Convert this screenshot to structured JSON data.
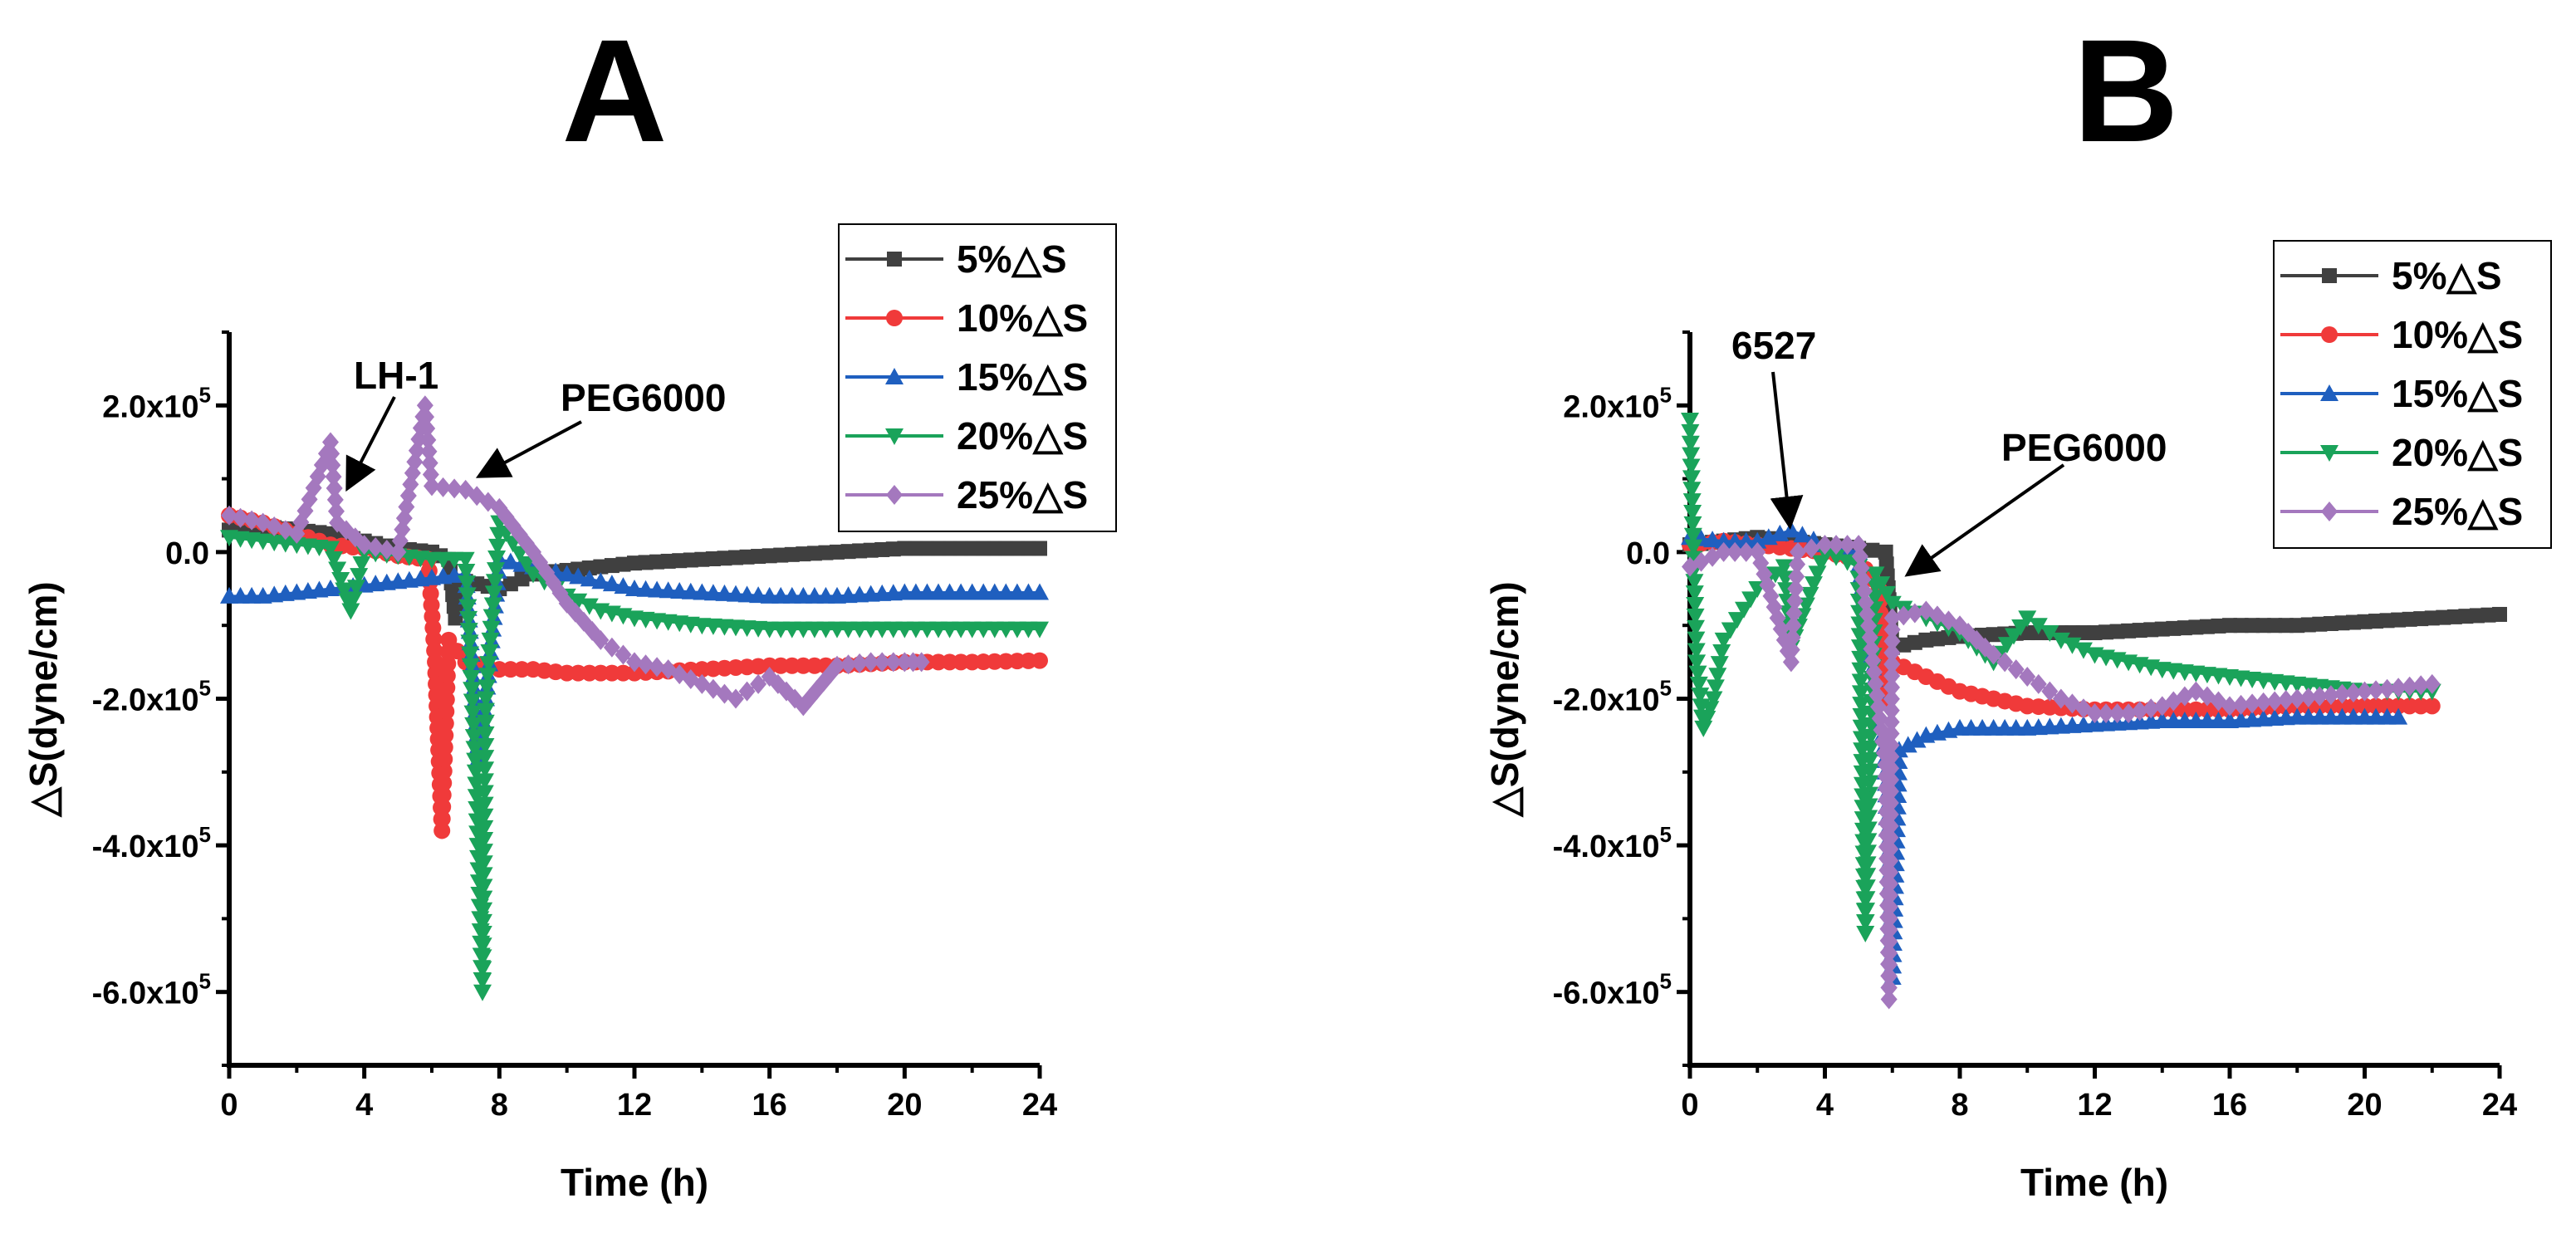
{
  "chart_data": [
    {
      "type": "scatter",
      "panel": "A",
      "xlabel": "Time (h)",
      "ylabel": "△S(dyne/cm)",
      "xlim": [
        0,
        24
      ],
      "ylim": [
        -700000,
        300000
      ],
      "xticks": [
        0,
        4,
        8,
        12,
        16,
        20,
        24
      ],
      "xtick_labels": [
        "0",
        "4",
        "8",
        "12",
        "16",
        "20",
        "24"
      ],
      "yticks": [
        200000,
        0,
        -200000,
        -400000,
        -600000
      ],
      "ytick_labels": [
        [
          "2.0x10",
          "5"
        ],
        [
          "0.0",
          ""
        ],
        [
          "-2.0x10",
          "5"
        ],
        [
          "-4.0x10",
          "5"
        ],
        [
          "-6.0x10",
          "5"
        ]
      ],
      "legend": [
        "5%△S",
        "10%△S",
        "15%△S",
        "20%△S",
        "25%△S"
      ],
      "annotations": [
        {
          "text": "LH-1",
          "x": 3.5,
          "y": 30000
        },
        {
          "text": "PEG6000",
          "x": 7.6,
          "y": 100000
        }
      ],
      "series": [
        {
          "name": "5%△S",
          "color": "#404040",
          "marker": "square",
          "points": [
            [
              0,
              30000
            ],
            [
              1,
              35000
            ],
            [
              2,
              30000
            ],
            [
              3,
              25000
            ],
            [
              4,
              15000
            ],
            [
              5,
              5000
            ],
            [
              6,
              0
            ],
            [
              6.5,
              -10000
            ],
            [
              6.7,
              -90000
            ],
            [
              7,
              -40000
            ],
            [
              8,
              -50000
            ],
            [
              9,
              -30000
            ],
            [
              10,
              -25000
            ],
            [
              11,
              -20000
            ],
            [
              12,
              -15000
            ],
            [
              14,
              -10000
            ],
            [
              16,
              -5000
            ],
            [
              18,
              0
            ],
            [
              20,
              5000
            ],
            [
              22,
              5000
            ],
            [
              24,
              5000
            ]
          ]
        },
        {
          "name": "10%△S",
          "color": "#f03a3a",
          "marker": "circle",
          "points": [
            [
              0,
              50000
            ],
            [
              1,
              40000
            ],
            [
              2,
              25000
            ],
            [
              3,
              10000
            ],
            [
              4,
              5000
            ],
            [
              5,
              -5000
            ],
            [
              5.9,
              -10000
            ],
            [
              6.1,
              -150000
            ],
            [
              6.2,
              -270000
            ],
            [
              6.3,
              -380000
            ],
            [
              6.5,
              -120000
            ],
            [
              7,
              -150000
            ],
            [
              8,
              -160000
            ],
            [
              9,
              -160000
            ],
            [
              10,
              -165000
            ],
            [
              12,
              -165000
            ],
            [
              14,
              -160000
            ],
            [
              16,
              -155000
            ],
            [
              18,
              -155000
            ],
            [
              20,
              -150000
            ],
            [
              22,
              -150000
            ],
            [
              24,
              -148000
            ]
          ]
        },
        {
          "name": "15%△S",
          "color": "#1f5fbf",
          "marker": "triangle-up",
          "points": [
            [
              0,
              -60000
            ],
            [
              1,
              -60000
            ],
            [
              2,
              -55000
            ],
            [
              3,
              -50000
            ],
            [
              4,
              -45000
            ],
            [
              5,
              -40000
            ],
            [
              6,
              -35000
            ],
            [
              7,
              -30000
            ],
            [
              7.4,
              -280000
            ],
            [
              7.6,
              -200000
            ],
            [
              8,
              -10000
            ],
            [
              9,
              -20000
            ],
            [
              10,
              -30000
            ],
            [
              11,
              -40000
            ],
            [
              12,
              -50000
            ],
            [
              14,
              -55000
            ],
            [
              16,
              -60000
            ],
            [
              18,
              -60000
            ],
            [
              20,
              -55000
            ],
            [
              22,
              -55000
            ],
            [
              24,
              -55000
            ]
          ]
        },
        {
          "name": "20%△S",
          "color": "#1aa35a",
          "marker": "triangle-down",
          "points": [
            [
              0,
              20000
            ],
            [
              1,
              15000
            ],
            [
              2,
              10000
            ],
            [
              3,
              5000
            ],
            [
              3.6,
              -80000
            ],
            [
              4,
              0
            ],
            [
              5,
              -5000
            ],
            [
              6,
              -10000
            ],
            [
              7,
              -10000
            ],
            [
              7.3,
              -300000
            ],
            [
              7.4,
              -450000
            ],
            [
              7.5,
              -600000
            ],
            [
              7.6,
              -200000
            ],
            [
              8,
              40000
            ],
            [
              9,
              -30000
            ],
            [
              10,
              -60000
            ],
            [
              11,
              -80000
            ],
            [
              12,
              -90000
            ],
            [
              14,
              -100000
            ],
            [
              16,
              -105000
            ],
            [
              18,
              -105000
            ],
            [
              20,
              -105000
            ],
            [
              22,
              -105000
            ],
            [
              24,
              -105000
            ]
          ]
        },
        {
          "name": "25%△S",
          "color": "#a478be",
          "marker": "diamond",
          "points": [
            [
              0,
              50000
            ],
            [
              1,
              40000
            ],
            [
              2,
              25000
            ],
            [
              3,
              150000
            ],
            [
              3.2,
              40000
            ],
            [
              4,
              10000
            ],
            [
              5,
              0
            ],
            [
              5.8,
              200000
            ],
            [
              6,
              90000
            ],
            [
              7,
              85000
            ],
            [
              8,
              60000
            ],
            [
              9,
              0
            ],
            [
              10,
              -70000
            ],
            [
              11,
              -120000
            ],
            [
              12,
              -150000
            ],
            [
              13,
              -160000
            ],
            [
              14,
              -180000
            ],
            [
              15,
              -200000
            ],
            [
              16,
              -170000
            ],
            [
              17,
              -210000
            ],
            [
              18,
              -155000
            ],
            [
              19,
              -150000
            ],
            [
              20,
              -150000
            ],
            [
              20.5,
              -150000
            ]
          ]
        }
      ]
    },
    {
      "type": "scatter",
      "panel": "B",
      "xlabel": "Time (h)",
      "ylabel": "△S(dyne/cm)",
      "xlim": [
        0,
        24
      ],
      "ylim": [
        -700000,
        300000
      ],
      "xticks": [
        0,
        4,
        8,
        12,
        16,
        20,
        24
      ],
      "xtick_labels": [
        "0",
        "4",
        "8",
        "12",
        "16",
        "20",
        "24"
      ],
      "yticks": [
        200000,
        0,
        -200000,
        -400000,
        -600000
      ],
      "ytick_labels": [
        [
          "2.0x10",
          "5"
        ],
        [
          "0.0",
          ""
        ],
        [
          "-2.0x10",
          "5"
        ],
        [
          "-4.0x10",
          "5"
        ],
        [
          "-6.0x10",
          "5"
        ]
      ],
      "legend": [
        "5%△S",
        "10%△S",
        "15%△S",
        "20%△S",
        "25%△S"
      ],
      "annotations": [
        {
          "text": "6527",
          "x": 2.8,
          "y": 30000
        },
        {
          "text": "PEG6000",
          "x": 6.4,
          "y": -30000
        }
      ],
      "series": [
        {
          "name": "5%△S",
          "color": "#404040",
          "marker": "square",
          "points": [
            [
              0,
              10000
            ],
            [
              1,
              15000
            ],
            [
              2,
              20000
            ],
            [
              3,
              15000
            ],
            [
              4,
              10000
            ],
            [
              5,
              5000
            ],
            [
              5.8,
              0
            ],
            [
              6,
              -130000
            ],
            [
              7,
              -120000
            ],
            [
              8,
              -115000
            ],
            [
              10,
              -110000
            ],
            [
              12,
              -110000
            ],
            [
              14,
              -105000
            ],
            [
              16,
              -100000
            ],
            [
              18,
              -100000
            ],
            [
              20,
              -95000
            ],
            [
              22,
              -90000
            ],
            [
              24,
              -85000
            ]
          ]
        },
        {
          "name": "10%△S",
          "color": "#f03a3a",
          "marker": "circle",
          "points": [
            [
              0,
              10000
            ],
            [
              1,
              15000
            ],
            [
              2,
              10000
            ],
            [
              3,
              5000
            ],
            [
              4,
              0
            ],
            [
              5,
              -10000
            ],
            [
              5.6,
              -50000
            ],
            [
              5.8,
              -200000
            ],
            [
              6,
              -150000
            ],
            [
              7,
              -170000
            ],
            [
              8,
              -190000
            ],
            [
              10,
              -210000
            ],
            [
              12,
              -215000
            ],
            [
              14,
              -215000
            ],
            [
              16,
              -215000
            ],
            [
              18,
              -210000
            ],
            [
              20,
              -210000
            ],
            [
              22,
              -210000
            ]
          ]
        },
        {
          "name": "15%△S",
          "color": "#1f5fbf",
          "marker": "triangle-up",
          "points": [
            [
              0,
              20000
            ],
            [
              1,
              15000
            ],
            [
              2,
              15000
            ],
            [
              3,
              30000
            ],
            [
              4,
              10000
            ],
            [
              5,
              0
            ],
            [
              5.8,
              -300000
            ],
            [
              6,
              -580000
            ],
            [
              6.2,
              -270000
            ],
            [
              7,
              -250000
            ],
            [
              8,
              -240000
            ],
            [
              10,
              -240000
            ],
            [
              12,
              -235000
            ],
            [
              14,
              -230000
            ],
            [
              16,
              -230000
            ],
            [
              18,
              -225000
            ],
            [
              20,
              -225000
            ],
            [
              21,
              -225000
            ]
          ]
        },
        {
          "name": "20%△S",
          "color": "#1aa35a",
          "marker": "triangle-down",
          "points": [
            [
              0,
              180000
            ],
            [
              0.2,
              -150000
            ],
            [
              0.4,
              -240000
            ],
            [
              0.7,
              -200000
            ],
            [
              1,
              -120000
            ],
            [
              2,
              -50000
            ],
            [
              2.8,
              -20000
            ],
            [
              3,
              -130000
            ],
            [
              4,
              0
            ],
            [
              5,
              -20000
            ],
            [
              5.2,
              -520000
            ],
            [
              5.5,
              -30000
            ],
            [
              6,
              -70000
            ],
            [
              7,
              -90000
            ],
            [
              8,
              -110000
            ],
            [
              9,
              -150000
            ],
            [
              10,
              -90000
            ],
            [
              11,
              -120000
            ],
            [
              12,
              -140000
            ],
            [
              14,
              -160000
            ],
            [
              16,
              -170000
            ],
            [
              18,
              -180000
            ],
            [
              20,
              -190000
            ],
            [
              22,
              -190000
            ]
          ]
        },
        {
          "name": "25%△S",
          "color": "#a478be",
          "marker": "diamond",
          "points": [
            [
              0,
              -20000
            ],
            [
              1,
              0
            ],
            [
              2,
              0
            ],
            [
              3,
              -150000
            ],
            [
              3.2,
              0
            ],
            [
              4,
              10000
            ],
            [
              5,
              10000
            ],
            [
              5.8,
              -290000
            ],
            [
              5.9,
              -610000
            ],
            [
              6,
              -90000
            ],
            [
              7,
              -80000
            ],
            [
              8,
              -100000
            ],
            [
              9,
              -140000
            ],
            [
              10,
              -170000
            ],
            [
              11,
              -200000
            ],
            [
              12,
              -220000
            ],
            [
              13,
              -220000
            ],
            [
              14,
              -210000
            ],
            [
              15,
              -190000
            ],
            [
              16,
              -210000
            ],
            [
              18,
              -200000
            ],
            [
              20,
              -190000
            ],
            [
              22,
              -180000
            ]
          ]
        }
      ]
    }
  ]
}
